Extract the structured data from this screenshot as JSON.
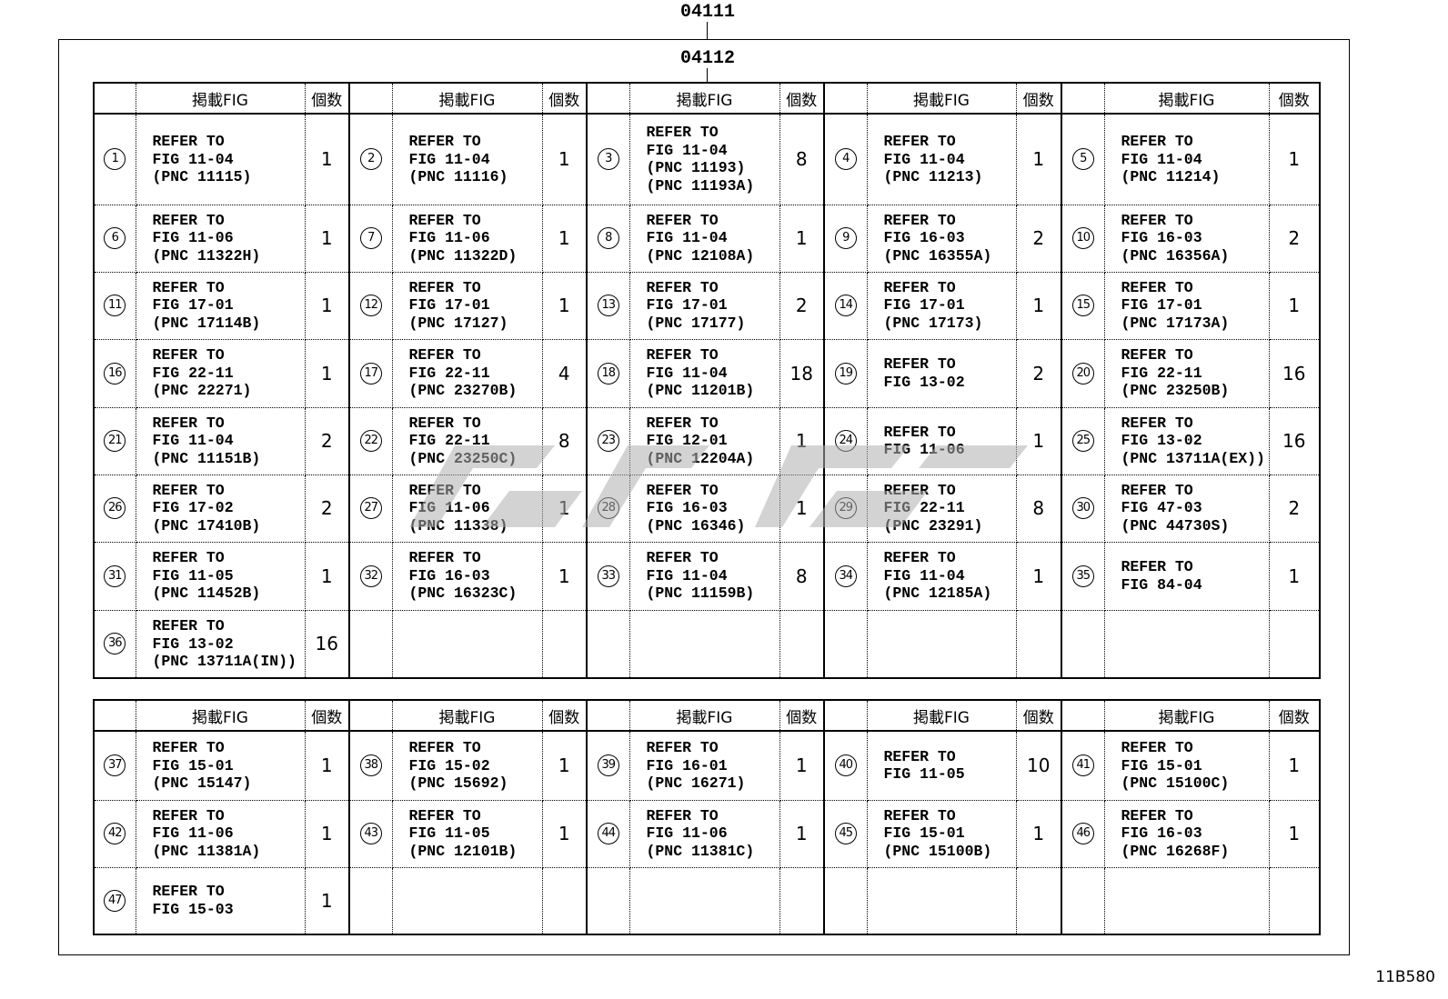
{
  "labels": {
    "outer": "04111",
    "inner": "04112",
    "drawing_code": "11B580"
  },
  "headers": {
    "fig": "掲載FIG",
    "qty": "個数"
  },
  "table1": [
    {
      "no": "1",
      "fig": [
        "REFER TO",
        "FIG 11-04",
        "(PNC 11115)"
      ],
      "qty": "1"
    },
    {
      "no": "2",
      "fig": [
        "REFER TO",
        "FIG 11-04",
        "(PNC 11116)"
      ],
      "qty": "1"
    },
    {
      "no": "3",
      "fig": [
        "REFER TO",
        "FIG 11-04",
        "(PNC 11193)",
        "(PNC 11193A)"
      ],
      "qty": "8"
    },
    {
      "no": "4",
      "fig": [
        "REFER TO",
        "FIG 11-04",
        "(PNC 11213)"
      ],
      "qty": "1"
    },
    {
      "no": "5",
      "fig": [
        "REFER TO",
        "FIG 11-04",
        "(PNC 11214)"
      ],
      "qty": "1"
    },
    {
      "no": "6",
      "fig": [
        "REFER TO",
        "FIG 11-06",
        "(PNC 11322H)"
      ],
      "qty": "1"
    },
    {
      "no": "7",
      "fig": [
        "REFER TO",
        "FIG 11-06",
        "(PNC 11322D)"
      ],
      "qty": "1"
    },
    {
      "no": "8",
      "fig": [
        "REFER TO",
        "FIG 11-04",
        "(PNC 12108A)"
      ],
      "qty": "1"
    },
    {
      "no": "9",
      "fig": [
        "REFER TO",
        "FIG 16-03",
        "(PNC 16355A)"
      ],
      "qty": "2"
    },
    {
      "no": "10",
      "fig": [
        "REFER TO",
        "FIG 16-03",
        "(PNC 16356A)"
      ],
      "qty": "2"
    },
    {
      "no": "11",
      "fig": [
        "REFER TO",
        "FIG 17-01",
        "(PNC 17114B)"
      ],
      "qty": "1"
    },
    {
      "no": "12",
      "fig": [
        "REFER TO",
        "FIG 17-01",
        "(PNC 17127)"
      ],
      "qty": "1"
    },
    {
      "no": "13",
      "fig": [
        "REFER TO",
        "FIG 17-01",
        "(PNC 17177)"
      ],
      "qty": "2"
    },
    {
      "no": "14",
      "fig": [
        "REFER TO",
        "FIG 17-01",
        "(PNC 17173)"
      ],
      "qty": "1"
    },
    {
      "no": "15",
      "fig": [
        "REFER TO",
        "FIG 17-01",
        "(PNC 17173A)"
      ],
      "qty": "1"
    },
    {
      "no": "16",
      "fig": [
        "REFER TO",
        "FIG 22-11",
        "(PNC 22271)"
      ],
      "qty": "1"
    },
    {
      "no": "17",
      "fig": [
        "REFER TO",
        "FIG 22-11",
        "(PNC 23270B)"
      ],
      "qty": "4"
    },
    {
      "no": "18",
      "fig": [
        "REFER TO",
        "FIG 11-04",
        "(PNC 11201B)"
      ],
      "qty": "18"
    },
    {
      "no": "19",
      "fig": [
        "REFER TO",
        "FIG 13-02"
      ],
      "qty": "2"
    },
    {
      "no": "20",
      "fig": [
        "REFER TO",
        "FIG 22-11",
        "(PNC 23250B)"
      ],
      "qty": "16"
    },
    {
      "no": "21",
      "fig": [
        "REFER TO",
        "FIG 11-04",
        "(PNC 11151B)"
      ],
      "qty": "2"
    },
    {
      "no": "22",
      "fig": [
        "REFER TO",
        "FIG 22-11",
        "(PNC 23250C)"
      ],
      "qty": "8"
    },
    {
      "no": "23",
      "fig": [
        "REFER TO",
        "FIG 12-01",
        "(PNC 12204A)"
      ],
      "qty": "1"
    },
    {
      "no": "24",
      "fig": [
        "REFER TO",
        "FIG 11-06"
      ],
      "qty": "1"
    },
    {
      "no": "25",
      "fig": [
        "REFER TO",
        "FIG 13-02",
        "(PNC 13711A(EX))"
      ],
      "qty": "16"
    },
    {
      "no": "26",
      "fig": [
        "REFER TO",
        "FIG 17-02",
        "(PNC 17410B)"
      ],
      "qty": "2"
    },
    {
      "no": "27",
      "fig": [
        "REFER TO",
        "FIG 11-06",
        "(PNC 11338)"
      ],
      "qty": "1"
    },
    {
      "no": "28",
      "fig": [
        "REFER TO",
        "FIG 16-03",
        "(PNC 16346)"
      ],
      "qty": "1"
    },
    {
      "no": "29",
      "fig": [
        "REFER TO",
        "FIG 22-11",
        "(PNC 23291)"
      ],
      "qty": "8"
    },
    {
      "no": "30",
      "fig": [
        "REFER TO",
        "FIG 47-03",
        "(PNC 44730S)"
      ],
      "qty": "2"
    },
    {
      "no": "31",
      "fig": [
        "REFER TO",
        "FIG 11-05",
        "(PNC 11452B)"
      ],
      "qty": "1"
    },
    {
      "no": "32",
      "fig": [
        "REFER TO",
        "FIG 16-03",
        "(PNC 16323C)"
      ],
      "qty": "1"
    },
    {
      "no": "33",
      "fig": [
        "REFER TO",
        "FIG 11-04",
        "(PNC 11159B)"
      ],
      "qty": "8"
    },
    {
      "no": "34",
      "fig": [
        "REFER TO",
        "FIG 11-04",
        "(PNC 12185A)"
      ],
      "qty": "1"
    },
    {
      "no": "35",
      "fig": [
        "REFER TO",
        "FIG 84-04"
      ],
      "qty": "1"
    },
    {
      "no": "36",
      "fig": [
        "REFER TO",
        "FIG 13-02",
        "(PNC 13711A(IN))"
      ],
      "qty": "16"
    }
  ],
  "table2": [
    {
      "no": "37",
      "fig": [
        "REFER TO",
        "FIG 15-01",
        "(PNC 15147)"
      ],
      "qty": "1"
    },
    {
      "no": "38",
      "fig": [
        "REFER TO",
        "FIG 15-02",
        "(PNC 15692)"
      ],
      "qty": "1"
    },
    {
      "no": "39",
      "fig": [
        "REFER TO",
        "FIG 16-01",
        "(PNC 16271)"
      ],
      "qty": "1"
    },
    {
      "no": "40",
      "fig": [
        "REFER TO",
        "FIG 11-05"
      ],
      "qty": "10"
    },
    {
      "no": "41",
      "fig": [
        "REFER TO",
        "FIG 15-01",
        "(PNC 15100C)"
      ],
      "qty": "1"
    },
    {
      "no": "42",
      "fig": [
        "REFER TO",
        "FIG 11-06",
        "(PNC 11381A)"
      ],
      "qty": "1"
    },
    {
      "no": "43",
      "fig": [
        "REFER TO",
        "FIG 11-05",
        "(PNC 12101B)"
      ],
      "qty": "1"
    },
    {
      "no": "44",
      "fig": [
        "REFER TO",
        "FIG 11-06",
        "(PNC 11381C)"
      ],
      "qty": "1"
    },
    {
      "no": "45",
      "fig": [
        "REFER TO",
        "FIG 15-01",
        "(PNC 15100B)"
      ],
      "qty": "1"
    },
    {
      "no": "46",
      "fig": [
        "REFER TO",
        "FIG 16-03",
        "(PNC 16268F)"
      ],
      "qty": "1"
    },
    {
      "no": "47",
      "fig": [
        "REFER TO",
        "FIG 15-03"
      ],
      "qty": "1"
    }
  ]
}
